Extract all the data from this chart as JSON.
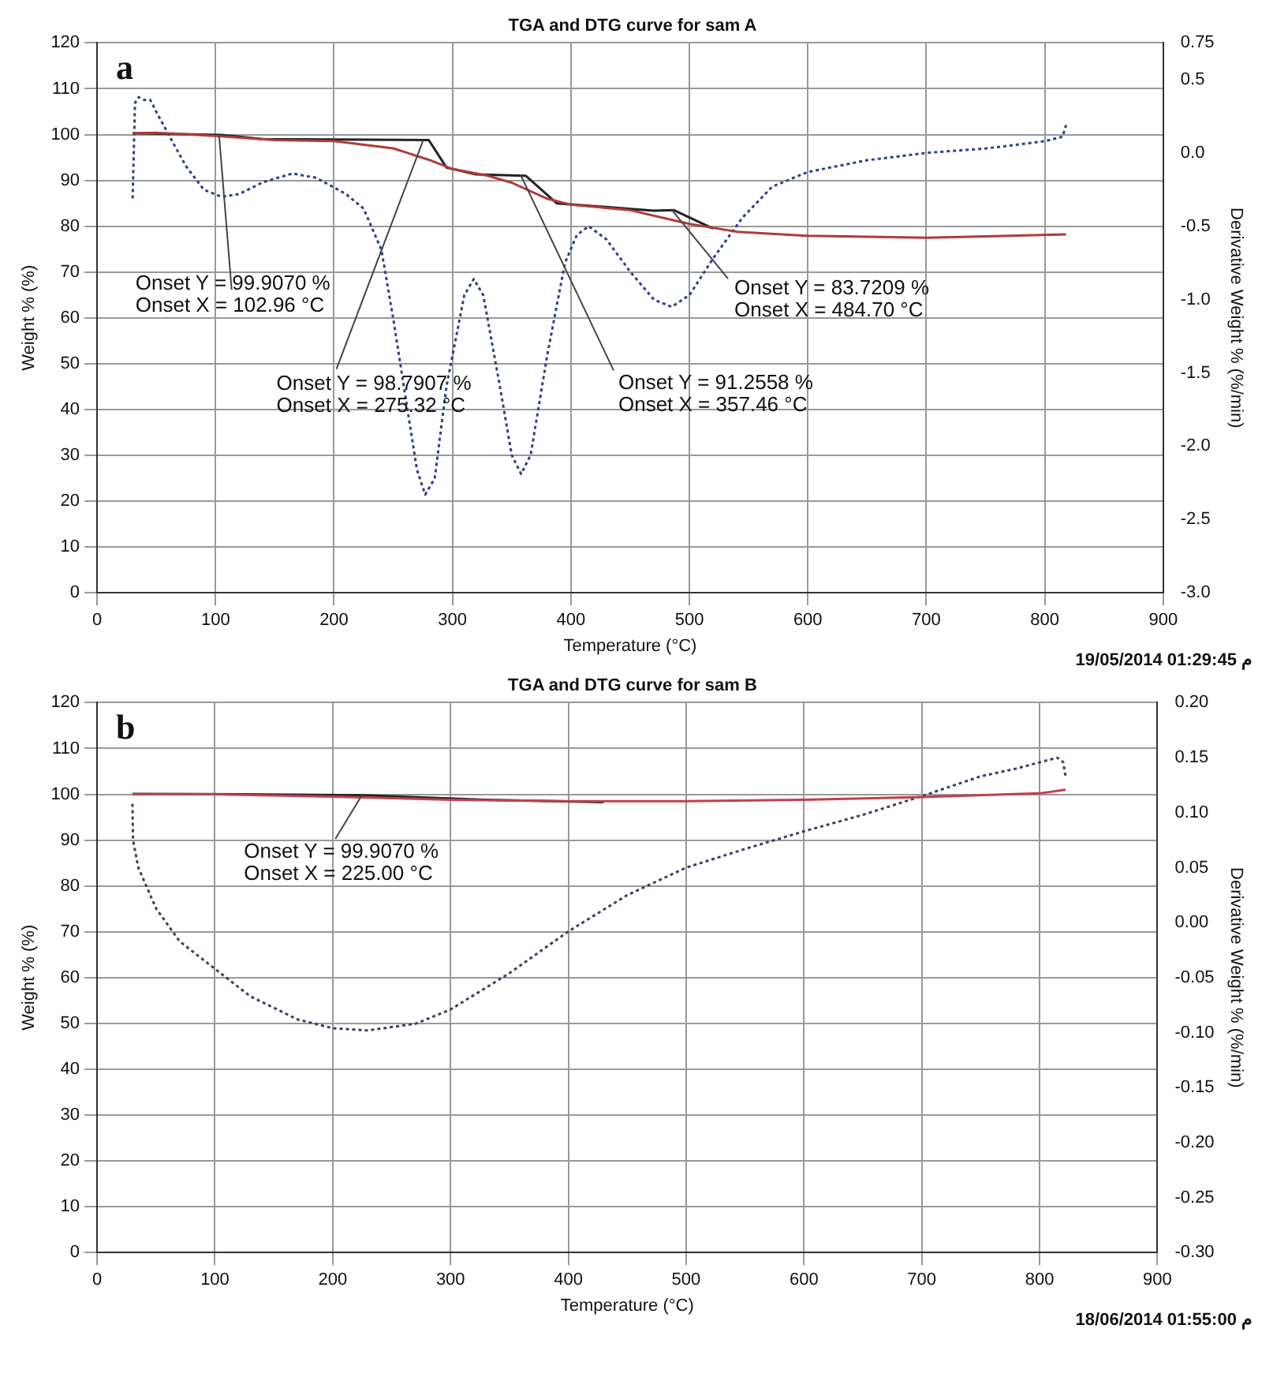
{
  "chart_data": [
    {
      "type": "line",
      "title": "TGA and DTG curve for sam A",
      "xlabel": "Temperature (°C)",
      "ylabel": "Weight % (%)",
      "y2label": "Derivative Weight % (%/min)",
      "xlim": [
        0,
        900
      ],
      "xticks": [
        0,
        100,
        200,
        300,
        400,
        500,
        600,
        700,
        800,
        900
      ],
      "ylim": [
        0,
        120
      ],
      "yticks": [
        0,
        10,
        20,
        30,
        40,
        50,
        60,
        70,
        80,
        90,
        100,
        110,
        120
      ],
      "y2lim": [
        -3,
        0.75
      ],
      "y2ticks": [
        {
          "value": -3,
          "label": "-3.0"
        },
        -2.5,
        {
          "value": -2,
          "label": "-2.0"
        },
        -1.5,
        {
          "value": -1,
          "label": "-1.0"
        },
        -0.5,
        {
          "value": 0,
          "label": "0.0"
        },
        0.5,
        0.75
      ],
      "grid": true,
      "legend": false,
      "marker": "none",
      "series": [
        {
          "color": "#b03a3a",
          "line_style": "solid",
          "x": [
            30,
            50,
            100,
            150,
            200,
            250,
            280,
            300,
            330,
            350,
            380,
            400,
            450,
            500,
            540,
            600,
            700,
            818
          ],
          "values": [
            100.3,
            100.4,
            99.7,
            98.8,
            98.6,
            97,
            94.5,
            92.5,
            91,
            89.5,
            86,
            84.7,
            83.5,
            80.5,
            78.8,
            77.9,
            77.5,
            78.2
          ]
        },
        {
          "color": "#222222",
          "line_style": "solid",
          "x": [
            30,
            105,
            140,
            280,
            295,
            320,
            362,
            388,
            470,
            487,
            520
          ],
          "values": [
            100.3,
            99.9,
            99,
            98.8,
            92.8,
            91.3,
            91,
            85,
            83.4,
            83.5,
            79.5
          ]
        },
        {
          "color": "#2b3f8c",
          "line_style": "dotted",
          "axis": "y2",
          "x": [
            30,
            32,
            35,
            40,
            45,
            50,
            60,
            75,
            90,
            105,
            120,
            140,
            165,
            185,
            210,
            225,
            240,
            250,
            262,
            270,
            277,
            285,
            295,
            310,
            318,
            326,
            340,
            350,
            358,
            366,
            380,
            395,
            405,
            415,
            430,
            450,
            470,
            485,
            500,
            520,
            545,
            570,
            600,
            650,
            700,
            750,
            800,
            815,
            818
          ],
          "values": [
            -0.31,
            0.34,
            0.38,
            0.36,
            0.36,
            0.28,
            0.13,
            -0.09,
            -0.25,
            -0.3,
            -0.28,
            -0.2,
            -0.14,
            -0.17,
            -0.28,
            -0.38,
            -0.66,
            -1.13,
            -1.75,
            -2.16,
            -2.33,
            -2.22,
            -1.59,
            -0.97,
            -0.86,
            -0.97,
            -1.59,
            -2.06,
            -2.19,
            -2.06,
            -1.38,
            -0.75,
            -0.56,
            -0.5,
            -0.59,
            -0.81,
            -1,
            -1.05,
            -0.97,
            -0.72,
            -0.44,
            -0.23,
            -0.13,
            -0.05,
            0,
            0.03,
            0.08,
            0.11,
            0.19
          ]
        }
      ],
      "annotations": [
        "a",
        "19/05/2014 01:29:45 م",
        {
          "text": "Onset Y = 99.9070 %\nOnset X = 102.96 °C",
          "x": 102.96,
          "y": 99.907
        },
        {
          "text": "Onset Y = 98.7907 %\nOnset X = 275.32 °C",
          "x": 275.32,
          "y": 98.7907
        },
        {
          "text": "Onset Y = 91.2558 %\nOnset X = 357.46 °C",
          "x": 357.46,
          "y": 91.2558
        },
        {
          "text": "Onset Y = 83.7209 %\nOnset X = 484.70 °C",
          "x": 484.7,
          "y": 83.7209
        }
      ]
    },
    {
      "type": "line",
      "title": "TGA and DTG curve for sam B",
      "xlabel": "Temperature (°C)",
      "ylabel": "Weight % (%)",
      "y2label": "Derivative Weight % (%/min)",
      "xlim": [
        0,
        900
      ],
      "xticks": [
        0,
        100,
        200,
        300,
        400,
        500,
        600,
        700,
        800,
        900
      ],
      "ylim": [
        0,
        120
      ],
      "yticks": [
        0,
        10,
        20,
        30,
        40,
        50,
        60,
        70,
        80,
        90,
        100,
        110,
        120
      ],
      "y2lim": [
        -0.3,
        0.2
      ],
      "y2ticks": [
        {
          "value": -0.3,
          "label": "-0.30"
        },
        {
          "value": -0.25,
          "label": "-0.25"
        },
        {
          "value": -0.2,
          "label": "-0.20"
        },
        {
          "value": -0.15,
          "label": "-0.15"
        },
        {
          "value": -0.1,
          "label": "-0.10"
        },
        {
          "value": -0.05,
          "label": "-0.05"
        },
        {
          "value": 0,
          "label": "0.00"
        },
        {
          "value": 0.05,
          "label": "0.05"
        },
        {
          "value": 0.1,
          "label": "0.10"
        },
        {
          "value": 0.15,
          "label": "0.15"
        },
        {
          "value": 0.2,
          "label": "0.20"
        }
      ],
      "grid": true,
      "legend": false,
      "marker": "none",
      "series": [
        {
          "color": "#c0404a",
          "line_style": "solid",
          "x": [
            30,
            100,
            200,
            300,
            400,
            500,
            600,
            700,
            800,
            822
          ],
          "values": [
            100,
            100,
            99.5,
            98.8,
            98.5,
            98.5,
            98.8,
            99.4,
            100.2,
            101
          ]
        },
        {
          "color": "#222222",
          "line_style": "solid",
          "x": [
            30,
            125,
            225,
            330,
            430
          ],
          "values": [
            100.1,
            100,
            99.8,
            98.8,
            98.3
          ]
        },
        {
          "color": "#3a4060",
          "line_style": "dotted",
          "axis": "y2",
          "x": [
            30,
            30.5,
            35,
            50,
            70,
            100,
            130,
            170,
            200,
            230,
            270,
            300,
            350,
            400,
            450,
            500,
            550,
            600,
            650,
            700,
            750,
            780,
            815,
            820,
            822
          ],
          "values": [
            0.108,
            0.075,
            0.05,
            0.013,
            -0.017,
            -0.042,
            -0.067,
            -0.088,
            -0.096,
            -0.098,
            -0.092,
            -0.079,
            -0.046,
            -0.008,
            0.025,
            0.05,
            0.067,
            0.083,
            0.098,
            0.115,
            0.133,
            0.14,
            0.15,
            0.146,
            0.133
          ]
        }
      ],
      "annotations": [
        "b",
        "18/06/2014 01:55:00 م",
        {
          "text": "Onset Y = 99.9070 %\nOnset X = 225.00 °C",
          "x": 225,
          "y": 99.907
        }
      ]
    }
  ]
}
